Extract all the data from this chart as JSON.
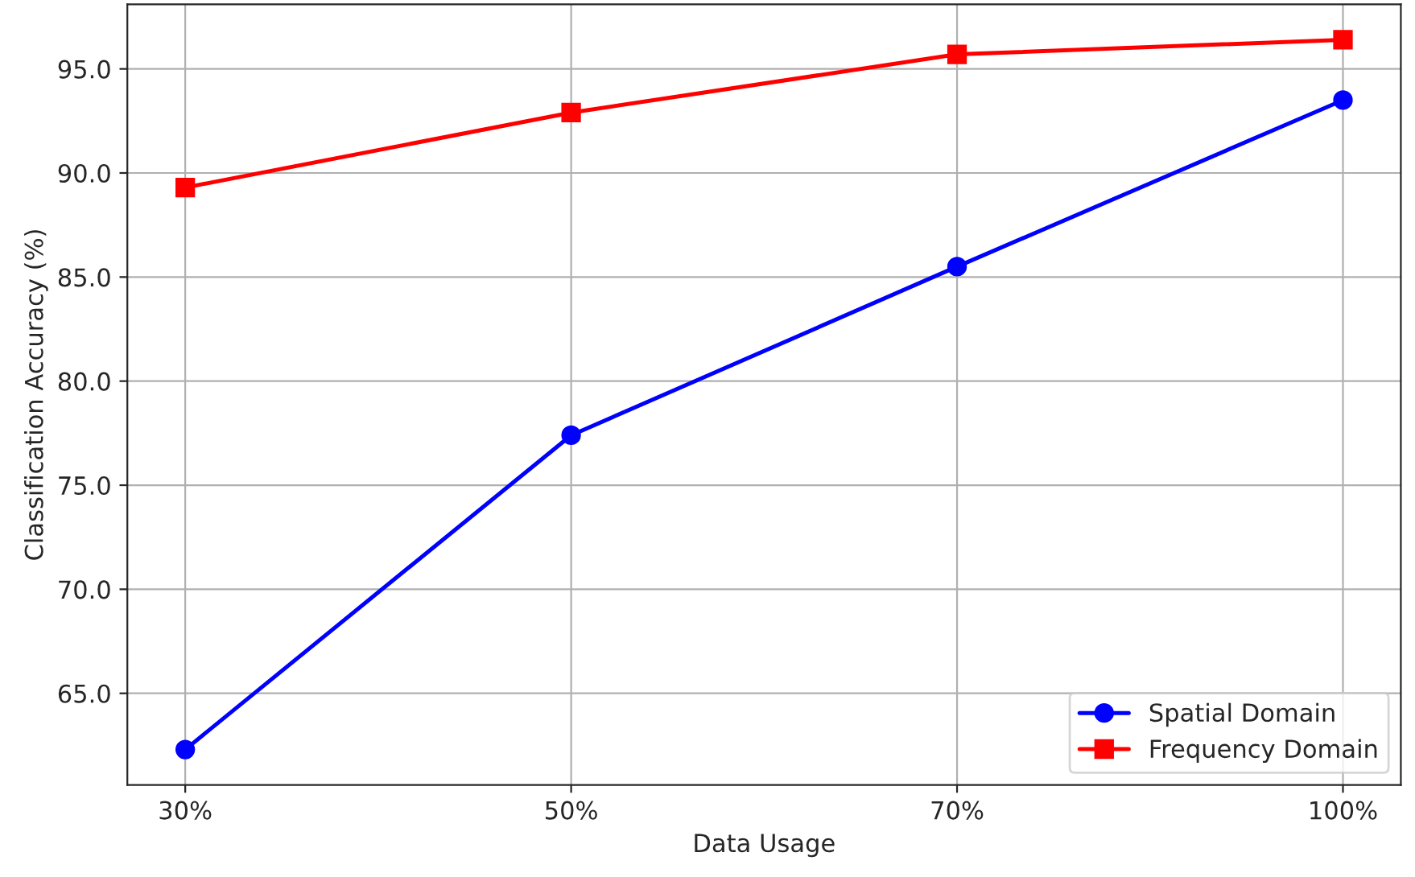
{
  "chart_data": {
    "type": "line",
    "xlabel": "Data Usage",
    "ylabel": "Classification Accuracy (%)",
    "categories": [
      "30%",
      "50%",
      "70%",
      "100%"
    ],
    "series": [
      {
        "name": "Spatial Domain",
        "color": "#0000ff",
        "marker": "circle",
        "values": [
          62.3,
          77.4,
          85.5,
          93.5
        ]
      },
      {
        "name": "Frequency Domain",
        "color": "#ff0000",
        "marker": "square",
        "values": [
          89.3,
          92.9,
          95.7,
          96.4
        ]
      }
    ],
    "ylim": [
      60.6,
      98.1
    ],
    "yticks": [
      {
        "value": 65,
        "label": "65.0"
      },
      {
        "value": 70,
        "label": "70.0"
      },
      {
        "value": 75,
        "label": "75.0"
      },
      {
        "value": 80,
        "label": "80.0"
      },
      {
        "value": 85,
        "label": "85.0"
      },
      {
        "value": 90,
        "label": "90.0"
      },
      {
        "value": 95,
        "label": "95.0"
      }
    ],
    "grid": true,
    "legend": "lower right",
    "line_style": "solid"
  }
}
